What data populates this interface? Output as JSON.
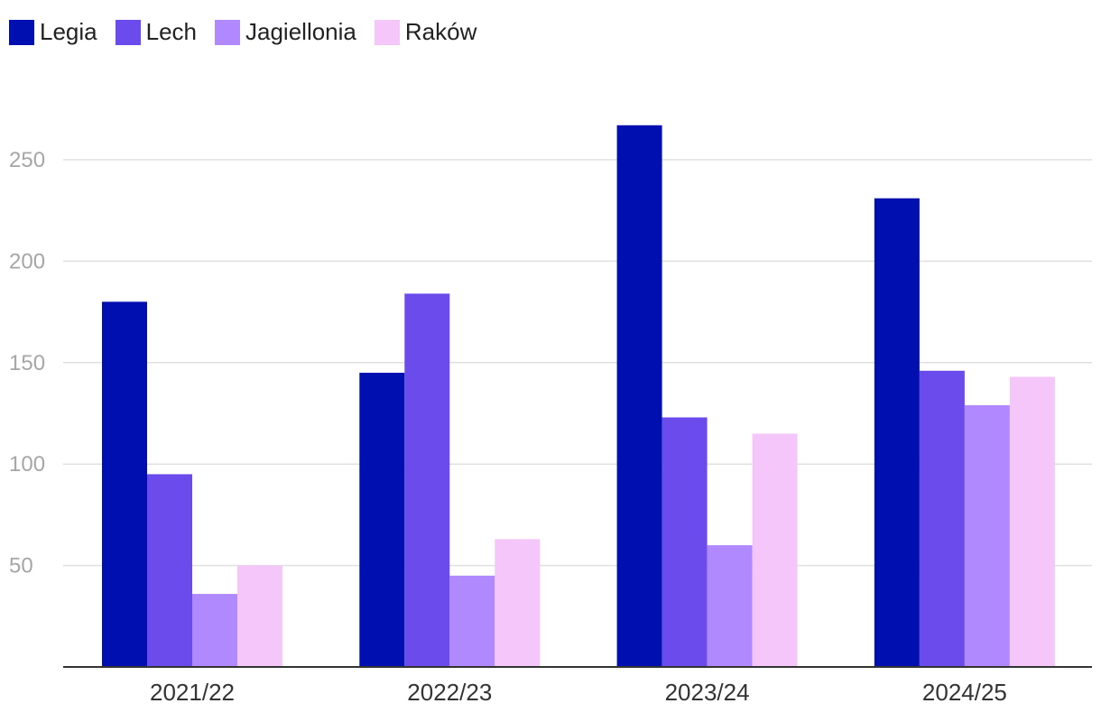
{
  "chart_data": {
    "type": "bar",
    "title": "",
    "xlabel": "",
    "ylabel": "",
    "categories": [
      "2021/22",
      "2022/23",
      "2023/24",
      "2024/25"
    ],
    "series": [
      {
        "name": "Legia",
        "color": "#0010B0",
        "values": [
          180,
          145,
          267,
          231
        ]
      },
      {
        "name": "Lech",
        "color": "#6B4BEB",
        "values": [
          95,
          184,
          123,
          146
        ]
      },
      {
        "name": "Jagiellonia",
        "color": "#B088FF",
        "values": [
          36,
          45,
          60,
          129
        ]
      },
      {
        "name": "Raków",
        "color": "#F5C6FA",
        "values": [
          50,
          63,
          115,
          143
        ]
      }
    ],
    "y_ticks": [
      50,
      100,
      150,
      200,
      250
    ],
    "ylim": [
      0,
      290
    ],
    "grid": true,
    "legend_position": "top-left"
  }
}
